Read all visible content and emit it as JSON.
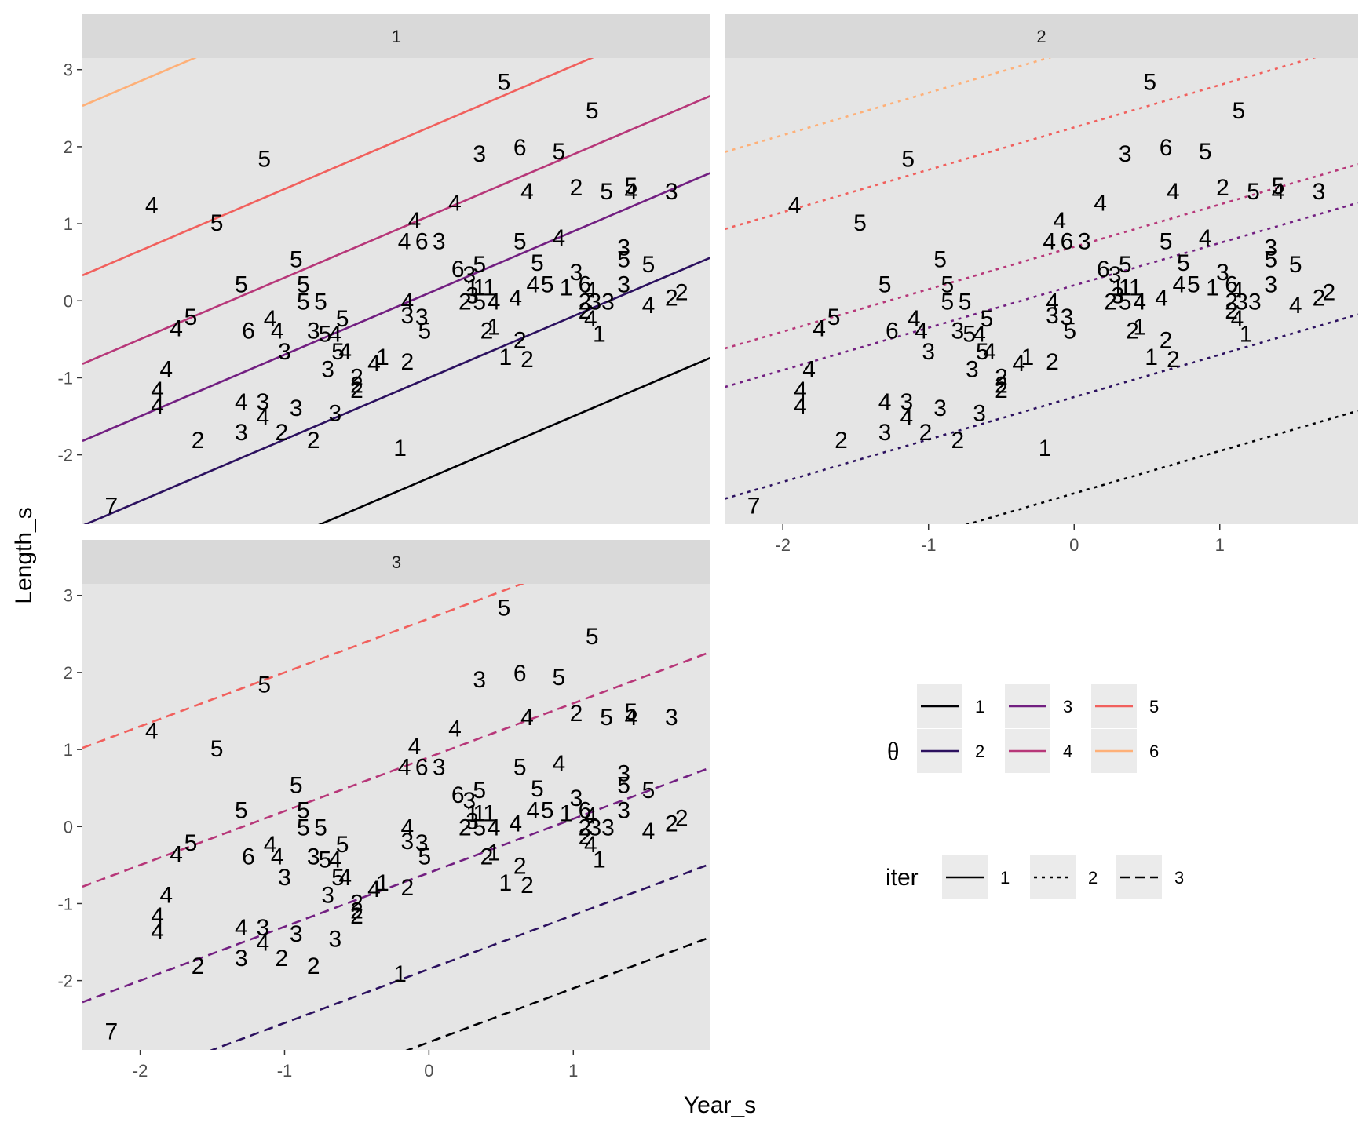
{
  "chart_data": {
    "type": "line",
    "xlabel": "Year_s",
    "ylabel": "Length_s",
    "xlim": [
      -2.4,
      1.95
    ],
    "ylim": [
      -2.9,
      3.15
    ],
    "xticks": [
      -2,
      -1,
      0,
      1
    ],
    "yticks": [
      -2,
      -1,
      0,
      1,
      2,
      3
    ],
    "grid": false,
    "panels": [
      {
        "strip": "1",
        "iter": 1
      },
      {
        "strip": "2",
        "iter": 2
      },
      {
        "strip": "3",
        "iter": 3
      }
    ],
    "points": [
      {
        "x": -2.2,
        "y": -2.65,
        "label": "7"
      },
      {
        "x": -1.92,
        "y": 1.25,
        "label": "4"
      },
      {
        "x": -1.47,
        "y": 1.02,
        "label": "5"
      },
      {
        "x": -1.14,
        "y": 1.85,
        "label": "5"
      },
      {
        "x": -1.75,
        "y": -0.35,
        "label": "4"
      },
      {
        "x": -1.65,
        "y": -0.2,
        "label": "5"
      },
      {
        "x": -1.82,
        "y": -0.88,
        "label": "4"
      },
      {
        "x": -1.88,
        "y": -1.15,
        "label": "4"
      },
      {
        "x": -1.88,
        "y": -1.35,
        "label": "4"
      },
      {
        "x": -1.6,
        "y": -1.8,
        "label": "2"
      },
      {
        "x": -1.3,
        "y": 0.22,
        "label": "5"
      },
      {
        "x": -1.25,
        "y": -0.38,
        "label": "6"
      },
      {
        "x": -1.1,
        "y": -0.22,
        "label": "4"
      },
      {
        "x": -1.05,
        "y": -0.38,
        "label": "4"
      },
      {
        "x": -1.0,
        "y": -0.65,
        "label": "3"
      },
      {
        "x": -0.92,
        "y": 0.55,
        "label": "5"
      },
      {
        "x": -0.87,
        "y": 0.22,
        "label": "5"
      },
      {
        "x": -0.87,
        "y": 0.0,
        "label": "5"
      },
      {
        "x": -0.75,
        "y": 0.0,
        "label": "5"
      },
      {
        "x": -0.8,
        "y": -0.38,
        "label": "3"
      },
      {
        "x": -0.72,
        "y": -0.42,
        "label": "5"
      },
      {
        "x": -0.65,
        "y": -0.42,
        "label": "4"
      },
      {
        "x": -0.6,
        "y": -0.22,
        "label": "5"
      },
      {
        "x": -0.63,
        "y": -0.65,
        "label": "5"
      },
      {
        "x": -0.58,
        "y": -0.65,
        "label": "4"
      },
      {
        "x": -0.7,
        "y": -0.88,
        "label": "3"
      },
      {
        "x": -1.3,
        "y": -1.3,
        "label": "4"
      },
      {
        "x": -1.15,
        "y": -1.3,
        "label": "3"
      },
      {
        "x": -1.15,
        "y": -1.5,
        "label": "4"
      },
      {
        "x": -1.02,
        "y": -1.7,
        "label": "2"
      },
      {
        "x": -0.92,
        "y": -1.38,
        "label": "3"
      },
      {
        "x": -1.3,
        "y": -1.7,
        "label": "3"
      },
      {
        "x": -0.8,
        "y": -1.8,
        "label": "2"
      },
      {
        "x": -0.65,
        "y": -1.45,
        "label": "3"
      },
      {
        "x": -0.5,
        "y": -0.98,
        "label": "2"
      },
      {
        "x": -0.5,
        "y": -1.08,
        "label": "2"
      },
      {
        "x": -0.5,
        "y": -1.15,
        "label": "2"
      },
      {
        "x": -0.38,
        "y": -0.8,
        "label": "4"
      },
      {
        "x": -0.32,
        "y": -0.72,
        "label": "1"
      },
      {
        "x": -0.15,
        "y": -0.78,
        "label": "2"
      },
      {
        "x": -0.15,
        "y": 0.0,
        "label": "4"
      },
      {
        "x": -0.15,
        "y": -0.18,
        "label": "3"
      },
      {
        "x": -0.05,
        "y": -0.2,
        "label": "3"
      },
      {
        "x": -0.03,
        "y": -0.38,
        "label": "5"
      },
      {
        "x": -0.1,
        "y": 1.05,
        "label": "4"
      },
      {
        "x": -0.17,
        "y": 0.78,
        "label": "4"
      },
      {
        "x": -0.05,
        "y": 0.78,
        "label": "6"
      },
      {
        "x": 0.07,
        "y": 0.78,
        "label": "3"
      },
      {
        "x": 0.18,
        "y": 1.28,
        "label": "4"
      },
      {
        "x": 0.35,
        "y": 1.92,
        "label": "3"
      },
      {
        "x": 0.52,
        "y": 2.85,
        "label": "5"
      },
      {
        "x": 0.63,
        "y": 2.0,
        "label": "6"
      },
      {
        "x": 0.68,
        "y": 1.43,
        "label": "4"
      },
      {
        "x": 0.9,
        "y": 1.95,
        "label": "5"
      },
      {
        "x": 1.02,
        "y": 1.48,
        "label": "2"
      },
      {
        "x": 1.13,
        "y": 2.48,
        "label": "5"
      },
      {
        "x": 1.23,
        "y": 1.43,
        "label": "5"
      },
      {
        "x": 1.4,
        "y": 1.5,
        "label": "5"
      },
      {
        "x": 1.4,
        "y": 1.43,
        "label": "4"
      },
      {
        "x": 1.68,
        "y": 1.43,
        "label": "3"
      },
      {
        "x": 0.2,
        "y": 0.42,
        "label": "6"
      },
      {
        "x": 0.28,
        "y": 0.35,
        "label": "3"
      },
      {
        "x": 0.35,
        "y": 0.48,
        "label": "5"
      },
      {
        "x": 0.3,
        "y": 0.18,
        "label": "1"
      },
      {
        "x": 0.35,
        "y": 0.18,
        "label": "1"
      },
      {
        "x": 0.42,
        "y": 0.18,
        "label": "1"
      },
      {
        "x": 0.25,
        "y": 0.0,
        "label": "2"
      },
      {
        "x": 0.3,
        "y": 0.08,
        "label": "3"
      },
      {
        "x": 0.35,
        "y": 0.0,
        "label": "5"
      },
      {
        "x": 0.45,
        "y": 0.0,
        "label": "4"
      },
      {
        "x": 0.63,
        "y": 0.78,
        "label": "5"
      },
      {
        "x": 0.9,
        "y": 0.83,
        "label": "4"
      },
      {
        "x": 0.75,
        "y": 0.5,
        "label": "5"
      },
      {
        "x": 0.6,
        "y": 0.05,
        "label": "4"
      },
      {
        "x": 0.72,
        "y": 0.22,
        "label": "4"
      },
      {
        "x": 0.82,
        "y": 0.22,
        "label": "5"
      },
      {
        "x": 0.4,
        "y": -0.38,
        "label": "2"
      },
      {
        "x": 0.45,
        "y": -0.33,
        "label": "1"
      },
      {
        "x": 0.63,
        "y": -0.5,
        "label": "2"
      },
      {
        "x": 0.53,
        "y": -0.72,
        "label": "1"
      },
      {
        "x": 0.68,
        "y": -0.75,
        "label": "2"
      },
      {
        "x": 1.02,
        "y": 0.38,
        "label": "3"
      },
      {
        "x": 0.95,
        "y": 0.18,
        "label": "1"
      },
      {
        "x": 1.08,
        "y": 0.22,
        "label": "6"
      },
      {
        "x": 1.12,
        "y": 0.15,
        "label": "4"
      },
      {
        "x": 1.08,
        "y": 0.0,
        "label": "2"
      },
      {
        "x": 1.15,
        "y": 0.0,
        "label": "3"
      },
      {
        "x": 1.24,
        "y": 0.0,
        "label": "3"
      },
      {
        "x": 1.08,
        "y": -0.12,
        "label": "2"
      },
      {
        "x": 1.12,
        "y": -0.22,
        "label": "4"
      },
      {
        "x": 1.18,
        "y": -0.42,
        "label": "1"
      },
      {
        "x": 1.35,
        "y": 0.7,
        "label": "3"
      },
      {
        "x": 1.35,
        "y": 0.55,
        "label": "5"
      },
      {
        "x": 1.52,
        "y": 0.48,
        "label": "5"
      },
      {
        "x": 1.35,
        "y": 0.22,
        "label": "3"
      },
      {
        "x": 1.52,
        "y": -0.05,
        "label": "4"
      },
      {
        "x": 1.68,
        "y": 0.05,
        "label": "2"
      },
      {
        "x": 1.75,
        "y": 0.12,
        "label": "2"
      },
      {
        "x": -0.2,
        "y": -1.9,
        "label": "1"
      }
    ],
    "lines": [
      {
        "panel": 1,
        "theta": "1",
        "slope": 0.8,
        "intercept": -2.3
      },
      {
        "panel": 1,
        "theta": "2",
        "slope": 0.8,
        "intercept": -1.0
      },
      {
        "panel": 1,
        "theta": "3",
        "slope": 0.8,
        "intercept": 0.1
      },
      {
        "panel": 1,
        "theta": "4",
        "slope": 0.8,
        "intercept": 1.1
      },
      {
        "panel": 1,
        "theta": "5",
        "slope": 0.8,
        "intercept": 2.25
      },
      {
        "panel": 1,
        "theta": "6",
        "slope": 0.8,
        "intercept": 4.45
      },
      {
        "panel": 2,
        "theta": "1",
        "slope": 0.55,
        "intercept": -2.5
      },
      {
        "panel": 2,
        "theta": "2",
        "slope": 0.55,
        "intercept": -1.25
      },
      {
        "panel": 2,
        "theta": "3",
        "slope": 0.55,
        "intercept": 0.2
      },
      {
        "panel": 2,
        "theta": "4",
        "slope": 0.55,
        "intercept": 0.7
      },
      {
        "panel": 2,
        "theta": "5",
        "slope": 0.55,
        "intercept": 2.25
      },
      {
        "panel": 2,
        "theta": "6",
        "slope": 0.55,
        "intercept": 3.25
      },
      {
        "panel": 3,
        "theta": "1",
        "slope": 0.7,
        "intercept": -2.8
      },
      {
        "panel": 3,
        "theta": "2",
        "slope": 0.7,
        "intercept": -1.85
      },
      {
        "panel": 3,
        "theta": "3",
        "slope": 0.7,
        "intercept": -0.6
      },
      {
        "panel": 3,
        "theta": "4",
        "slope": 0.7,
        "intercept": 0.9
      },
      {
        "panel": 3,
        "theta": "5",
        "slope": 0.7,
        "intercept": 2.7
      }
    ],
    "legends": [
      {
        "title": "θ",
        "type": "color",
        "entries": [
          {
            "label": "1",
            "color": "#000004"
          },
          {
            "label": "2",
            "color": "#2c115f"
          },
          {
            "label": "3",
            "color": "#721f81"
          },
          {
            "label": "4",
            "color": "#b73779"
          },
          {
            "label": "5",
            "color": "#f1605d"
          },
          {
            "label": "6",
            "color": "#feb078"
          }
        ]
      },
      {
        "title": "iter",
        "type": "linetype",
        "entries": [
          {
            "label": "1",
            "dash": "solid"
          },
          {
            "label": "2",
            "dash": "dotted"
          },
          {
            "label": "3",
            "dash": "dashed"
          }
        ]
      }
    ],
    "legend_position": "right"
  }
}
